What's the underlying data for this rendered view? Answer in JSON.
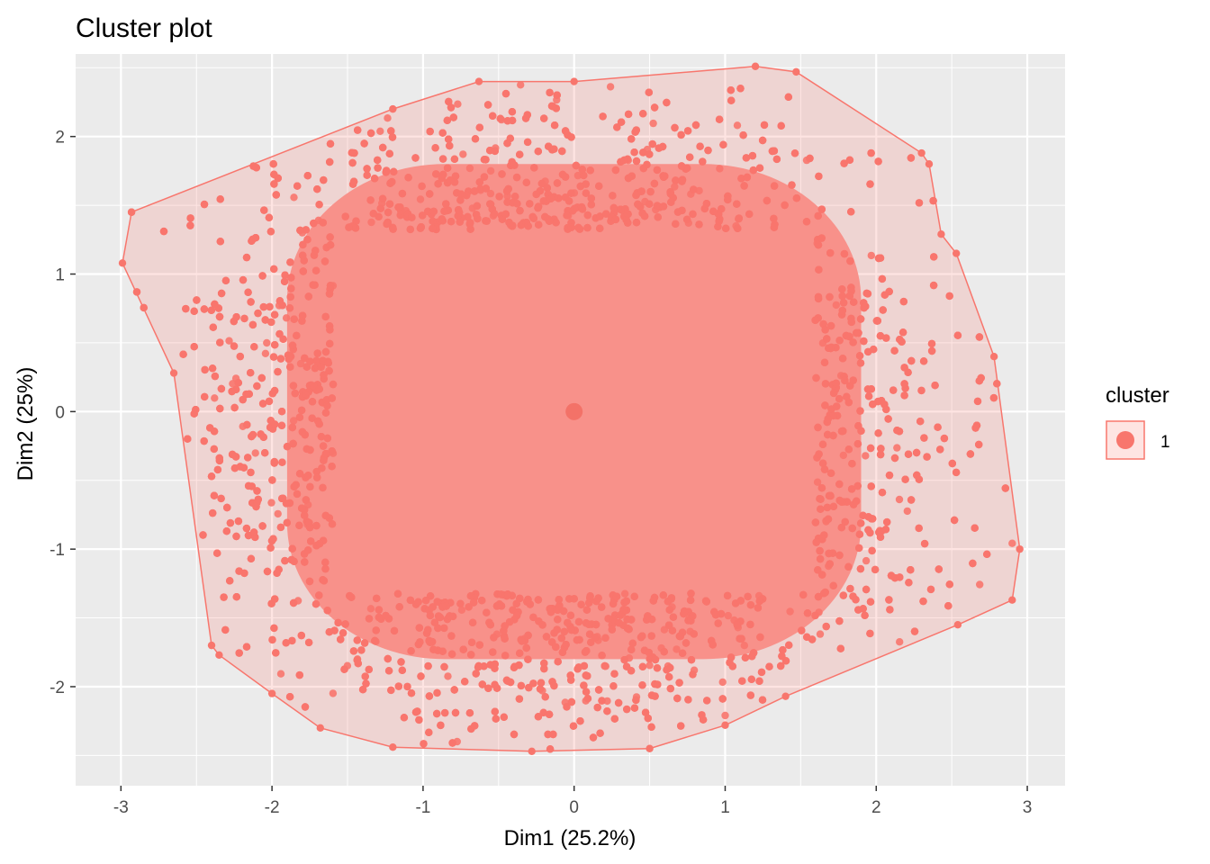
{
  "chart_data": {
    "type": "scatter",
    "title": "Cluster plot",
    "xlabel": "Dim1 (25.2%)",
    "ylabel": "Dim2 (25%)",
    "xlim": [
      -3.3,
      3.25
    ],
    "ylim": [
      -2.72,
      2.6
    ],
    "x_ticks": [
      -3,
      -2,
      -1,
      0,
      1,
      2,
      3
    ],
    "x_tick_labels": [
      "-3",
      "-2",
      "-1",
      "0",
      "1",
      "2",
      "3"
    ],
    "y_ticks": [
      -2,
      -1,
      0,
      1,
      2
    ],
    "y_tick_labels": [
      "-2",
      "-1",
      "0",
      "1",
      "2"
    ],
    "grid": true,
    "legend": {
      "title": "cluster",
      "position": "right",
      "entries": [
        "1"
      ]
    },
    "colors": {
      "points": "#F8766D",
      "fill": "#F8766D",
      "hull": "#F8766D",
      "panel": "#EBEBEB",
      "grid": "#FFFFFF"
    },
    "cluster_center": {
      "x": 0,
      "y": 0
    },
    "core_region": {
      "x_range": [
        -1.9,
        1.9
      ],
      "y_range": [
        -1.8,
        1.8
      ]
    },
    "hull": [
      [
        -2.93,
        1.45
      ],
      [
        -2.99,
        1.08
      ],
      [
        -2.65,
        0.28
      ],
      [
        -2.4,
        -1.7
      ],
      [
        -2.35,
        -1.77
      ],
      [
        -2.0,
        -2.05
      ],
      [
        -1.68,
        -2.3
      ],
      [
        -1.2,
        -2.44
      ],
      [
        -0.28,
        -2.47
      ],
      [
        0.5,
        -2.45
      ],
      [
        1.0,
        -2.28
      ],
      [
        1.4,
        -2.07
      ],
      [
        2.54,
        -1.55
      ],
      [
        2.9,
        -1.37
      ],
      [
        2.95,
        -1.0
      ],
      [
        2.78,
        0.4
      ],
      [
        2.53,
        1.15
      ],
      [
        2.43,
        1.29
      ],
      [
        2.35,
        1.8
      ],
      [
        2.3,
        1.88
      ],
      [
        1.47,
        2.47
      ],
      [
        1.2,
        2.51
      ],
      [
        0.0,
        2.4
      ],
      [
        -0.63,
        2.4
      ],
      [
        -1.2,
        2.2
      ],
      [
        -2.93,
        1.45
      ]
    ],
    "n_points_approx": 20000
  }
}
